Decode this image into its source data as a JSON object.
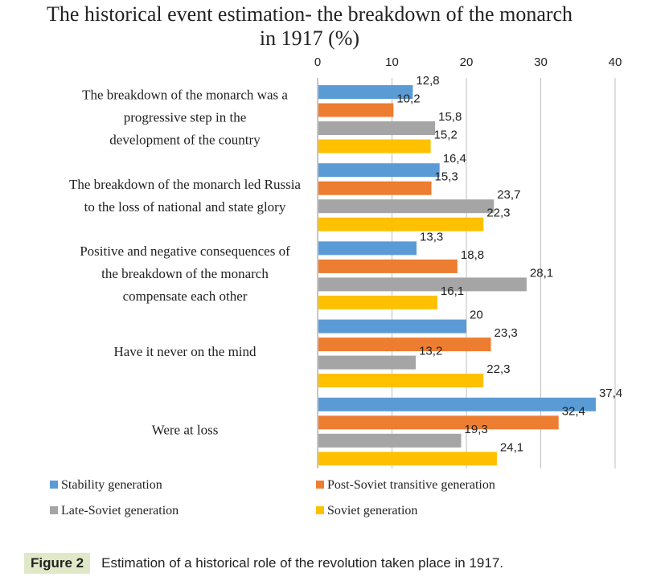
{
  "chart_data": {
    "type": "bar",
    "orientation": "horizontal",
    "title_lines": [
      "The historical event estimation- the breakdown of the monarch",
      "in 1917 (%)"
    ],
    "xlim": [
      0,
      40
    ],
    "xticks": [
      "0",
      "10",
      "20",
      "30",
      "40"
    ],
    "grid": true,
    "legend_position": "bottom",
    "categories": [
      [
        "The breakdown of the monarch was a",
        "progressive step in the",
        "development of the country"
      ],
      [
        "The breakdown of the monarch led Russia",
        "to the loss of national and state glory"
      ],
      [
        "Positive and negative consequences of",
        "the breakdown of the monarch",
        "compensate each other"
      ],
      [
        "Have it never on the mind"
      ],
      [
        "Were at loss"
      ]
    ],
    "series": [
      {
        "name": "Stability generation",
        "color": "#5b9bd5",
        "values": [
          12.8,
          16.4,
          13.3,
          20,
          37.4
        ],
        "labels": [
          "12,8",
          "16,4",
          "13,3",
          "20",
          "37,4"
        ]
      },
      {
        "name": "Post-Soviet transitive generation",
        "color": "#ed7d31",
        "values": [
          10.2,
          15.3,
          18.8,
          23.3,
          32.4
        ],
        "labels": [
          "10,2",
          "15,3",
          "18,8",
          "23,3",
          "32,4"
        ]
      },
      {
        "name": "Late-Soviet generation",
        "color": "#a5a5a5",
        "values": [
          15.8,
          23.7,
          28.1,
          13.2,
          19.3
        ],
        "labels": [
          "15,8",
          "23,7",
          "28,1",
          "13,2",
          "19,3"
        ]
      },
      {
        "name": "Soviet generation",
        "color": "#ffc000",
        "values": [
          15.2,
          22.3,
          16.1,
          22.3,
          24.1
        ],
        "labels": [
          "15,2",
          "22,3",
          "16,1",
          "22,3",
          "24,1"
        ]
      }
    ]
  },
  "caption": {
    "label": "Figure 2",
    "text": "Estimation of a historical role of the revolution taken place in 1917."
  }
}
